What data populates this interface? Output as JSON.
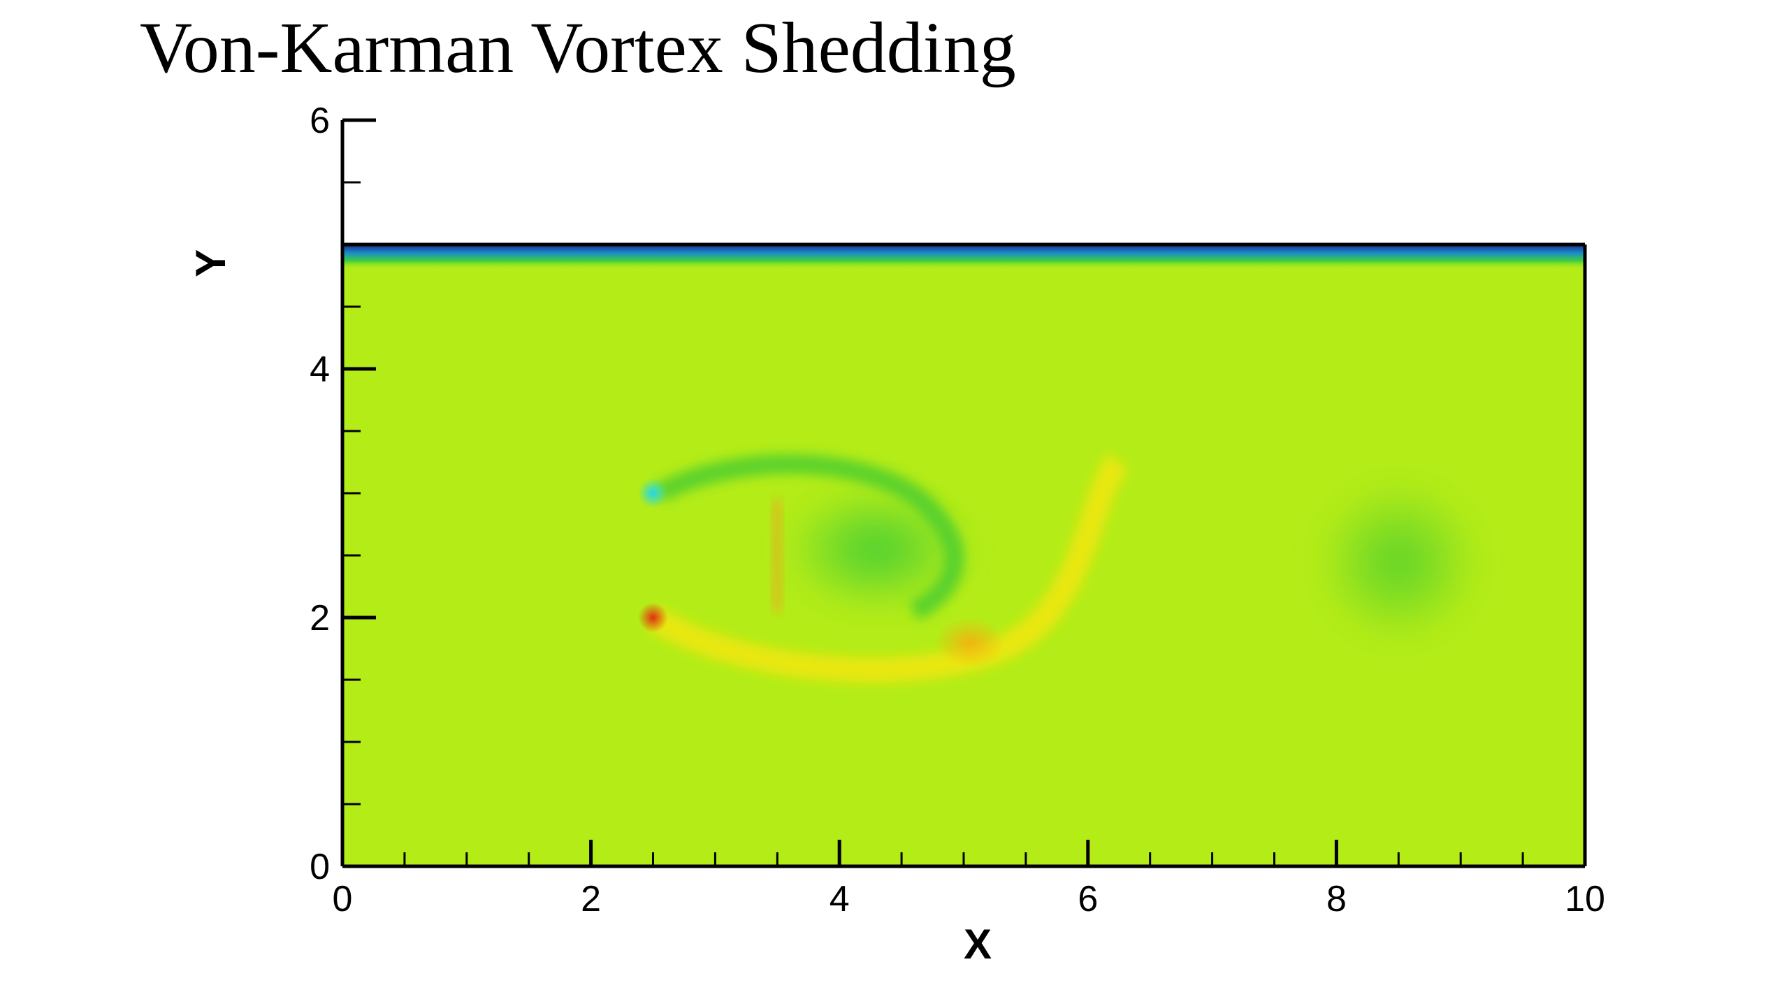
{
  "title": "Von-Karman Vortex Shedding",
  "chart_data": {
    "type": "heatmap",
    "title": "Von-Karman Vortex Shedding",
    "xlabel": "X",
    "ylabel": "Y",
    "xlim": [
      0,
      10
    ],
    "ylim": [
      0,
      6
    ],
    "domain": {
      "x": [
        0,
        10
      ],
      "y": [
        0,
        5
      ]
    },
    "x_ticks": [
      "0",
      "2",
      "4",
      "6",
      "8",
      "10"
    ],
    "y_ticks": [
      "0",
      "2",
      "4",
      "6"
    ],
    "grid": false,
    "colormap": [
      "#0000cc",
      "#00bfff",
      "#33cc33",
      "#aaee00",
      "#ffee00",
      "#ff8800",
      "#cc0000"
    ],
    "background_color": "#b4ec18",
    "obstacle": {
      "x": [
        2.5,
        3.5
      ],
      "y": [
        2.0,
        3.0
      ]
    },
    "features": [
      {
        "name": "top-wall-boundary-layer",
        "color": "#1d5fb0"
      },
      {
        "name": "upper-shear-vortex",
        "cx": 4.2,
        "cy": 2.7,
        "color": "#44cc33"
      },
      {
        "name": "lower-shear-streak",
        "cx": 5.0,
        "cy": 1.8,
        "color": "#f2e60a"
      },
      {
        "name": "wake-vortex",
        "cx": 8.5,
        "cy": 2.4,
        "color": "#5ad02b"
      },
      {
        "name": "corner-high",
        "cx": 2.5,
        "cy": 2.0,
        "color": "#e03a10"
      },
      {
        "name": "corner-low",
        "cx": 2.5,
        "cy": 3.0,
        "color": "#22ccdd"
      }
    ]
  }
}
